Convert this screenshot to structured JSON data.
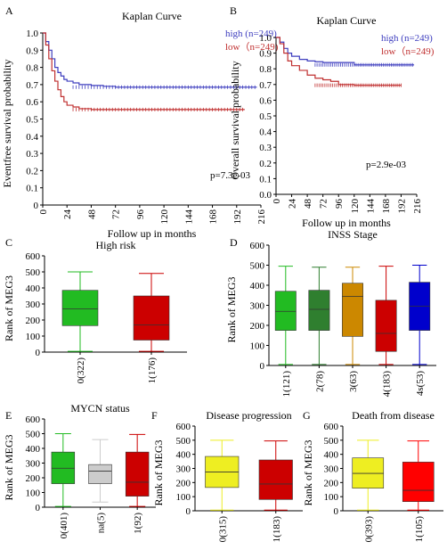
{
  "chart_data": [
    {
      "id": "A",
      "panel_label": "A",
      "type": "line",
      "subtype": "kaplan-meier",
      "title": "Kaplan Curve",
      "xlabel": "Follow up in months",
      "ylabel": "Eventfree survival probability",
      "xlim": [
        0,
        216
      ],
      "ylim": [
        0,
        1.0
      ],
      "x_ticks": [
        0,
        24,
        48,
        72,
        96,
        120,
        144,
        168,
        192,
        216
      ],
      "y_ticks": [
        0,
        0.1,
        0.2,
        0.3,
        0.4,
        0.5,
        0.6,
        0.7,
        0.8,
        0.9,
        1.0
      ],
      "y_tick_labels": [
        "0",
        "0.1",
        "0.2",
        "0.3",
        "0.4",
        "0.5",
        "0.6",
        "0.7",
        "0.8",
        "0.9",
        "1.0"
      ],
      "annotation": "p=7.3e-03",
      "legend_position": "top-right",
      "series": [
        {
          "name": "high (n=249)",
          "color": "#3f3fbf",
          "x": [
            0,
            3,
            6,
            9,
            12,
            15,
            18,
            21,
            24,
            30,
            36,
            48,
            60,
            72,
            96,
            120,
            150,
            180,
            212
          ],
          "y": [
            1.0,
            0.95,
            0.9,
            0.85,
            0.8,
            0.77,
            0.75,
            0.73,
            0.72,
            0.71,
            0.7,
            0.695,
            0.69,
            0.685,
            0.685,
            0.685,
            0.685,
            0.685,
            0.685
          ]
        },
        {
          "name": "low（n=249)",
          "color": "#c03030",
          "x": [
            0,
            3,
            6,
            9,
            12,
            15,
            18,
            21,
            24,
            30,
            36,
            48,
            60,
            72,
            96,
            120,
            150,
            180,
            200
          ],
          "y": [
            1.0,
            0.93,
            0.85,
            0.78,
            0.72,
            0.67,
            0.63,
            0.6,
            0.58,
            0.57,
            0.56,
            0.555,
            0.555,
            0.555,
            0.555,
            0.555,
            0.555,
            0.555,
            0.555
          ]
        }
      ]
    },
    {
      "id": "B",
      "panel_label": "B",
      "type": "line",
      "subtype": "kaplan-meier",
      "title": "Kaplan Curve",
      "xlabel": "Follow up in months",
      "ylabel": "Overall survival probability",
      "xlim": [
        0,
        216
      ],
      "ylim": [
        0,
        1.0
      ],
      "x_ticks": [
        0,
        24,
        48,
        72,
        96,
        120,
        144,
        168,
        192,
        216
      ],
      "y_ticks": [
        0,
        0.1,
        0.2,
        0.3,
        0.4,
        0.5,
        0.6,
        0.7,
        0.8,
        0.9,
        1.0
      ],
      "y_tick_labels": [
        "0.0",
        "0.1",
        "0.2",
        "0.3",
        "0.4",
        "0.5",
        "0.6",
        "0.7",
        "0.8",
        "0.9",
        "1.0"
      ],
      "annotation": "p=2.9e-03",
      "legend_position": "top-right",
      "series": [
        {
          "name": "high (n=249)",
          "color": "#3f3fbf",
          "x": [
            0,
            6,
            12,
            18,
            24,
            36,
            48,
            60,
            72,
            96,
            120,
            150,
            180,
            212
          ],
          "y": [
            1.0,
            0.97,
            0.93,
            0.9,
            0.88,
            0.86,
            0.85,
            0.845,
            0.84,
            0.84,
            0.825,
            0.825,
            0.825,
            0.825
          ]
        },
        {
          "name": "low（n=249)",
          "color": "#c03030",
          "x": [
            0,
            6,
            12,
            18,
            24,
            36,
            48,
            60,
            72,
            84,
            96,
            120,
            150,
            180,
            192
          ],
          "y": [
            1.0,
            0.96,
            0.9,
            0.85,
            0.82,
            0.79,
            0.76,
            0.74,
            0.73,
            0.72,
            0.7,
            0.695,
            0.695,
            0.695,
            0.695
          ]
        }
      ]
    },
    {
      "id": "C",
      "panel_label": "C",
      "type": "box",
      "title": "High risk",
      "ylabel": "Rank of MEG3",
      "ylim": [
        0,
        600
      ],
      "y_ticks": [
        0,
        100,
        200,
        300,
        400,
        500,
        600
      ],
      "categories": [
        "0(322)",
        "1(176)"
      ],
      "boxes": [
        {
          "min": 5,
          "q1": 165,
          "median": 270,
          "q3": 385,
          "max": 500,
          "color": "#22bb22"
        },
        {
          "min": 5,
          "q1": 75,
          "median": 170,
          "q3": 350,
          "max": 490,
          "color": "#cc0000"
        }
      ]
    },
    {
      "id": "D",
      "panel_label": "D",
      "type": "box",
      "title": "INSS Stage",
      "ylabel": "Rank of MEG3",
      "ylim": [
        0,
        600
      ],
      "y_ticks": [
        0,
        100,
        200,
        300,
        400,
        500,
        600
      ],
      "categories": [
        "1(121)",
        "2(78)",
        "3(63)",
        "4(183)",
        "4s(53)"
      ],
      "boxes": [
        {
          "min": 5,
          "q1": 175,
          "median": 270,
          "q3": 370,
          "max": 495,
          "color": "#22bb22"
        },
        {
          "min": 5,
          "q1": 175,
          "median": 280,
          "q3": 375,
          "max": 490,
          "color": "#2f7f2f"
        },
        {
          "min": 5,
          "q1": 145,
          "median": 345,
          "q3": 410,
          "max": 490,
          "color": "#cc8800"
        },
        {
          "min": 5,
          "q1": 70,
          "median": 160,
          "q3": 325,
          "max": 495,
          "color": "#cc0000"
        },
        {
          "min": 5,
          "q1": 175,
          "median": 295,
          "q3": 415,
          "max": 500,
          "color": "#0000cc"
        }
      ]
    },
    {
      "id": "E",
      "panel_label": "E",
      "type": "box",
      "title": "MYCN status",
      "ylabel": "Rank of MEG3",
      "ylim": [
        0,
        600
      ],
      "y_ticks": [
        0,
        100,
        200,
        300,
        400,
        500,
        600
      ],
      "categories": [
        "0(401)",
        "na(5)",
        "1(92)"
      ],
      "boxes": [
        {
          "min": 5,
          "q1": 160,
          "median": 265,
          "q3": 375,
          "max": 500,
          "color": "#22bb22"
        },
        {
          "min": 35,
          "q1": 160,
          "median": 245,
          "q3": 290,
          "max": 460,
          "color": "#cccccc"
        },
        {
          "min": 5,
          "q1": 75,
          "median": 170,
          "q3": 375,
          "max": 495,
          "color": "#cc0000"
        }
      ]
    },
    {
      "id": "F",
      "panel_label": "F",
      "type": "box",
      "title": "Disease progression",
      "ylabel": "Rank of MEG3",
      "ylim": [
        0,
        600
      ],
      "y_ticks": [
        0,
        100,
        200,
        300,
        400,
        500,
        600
      ],
      "categories": [
        "0(315)",
        "1(183)"
      ],
      "boxes": [
        {
          "min": 5,
          "q1": 165,
          "median": 275,
          "q3": 385,
          "max": 500,
          "color": "#eeee22"
        },
        {
          "min": 5,
          "q1": 80,
          "median": 190,
          "q3": 360,
          "max": 495,
          "color": "#cc0000"
        }
      ]
    },
    {
      "id": "G",
      "panel_label": "G",
      "type": "box",
      "title": "Death from disease",
      "ylabel": "Rank of MEG3",
      "ylim": [
        0,
        600
      ],
      "y_ticks": [
        0,
        100,
        200,
        300,
        400,
        500,
        600
      ],
      "categories": [
        "0(393)",
        "1(105)"
      ],
      "boxes": [
        {
          "min": 5,
          "q1": 160,
          "median": 265,
          "q3": 375,
          "max": 500,
          "color": "#eeee22"
        },
        {
          "min": 5,
          "q1": 65,
          "median": 145,
          "q3": 345,
          "max": 495,
          "color": "#ff0000"
        }
      ]
    }
  ]
}
